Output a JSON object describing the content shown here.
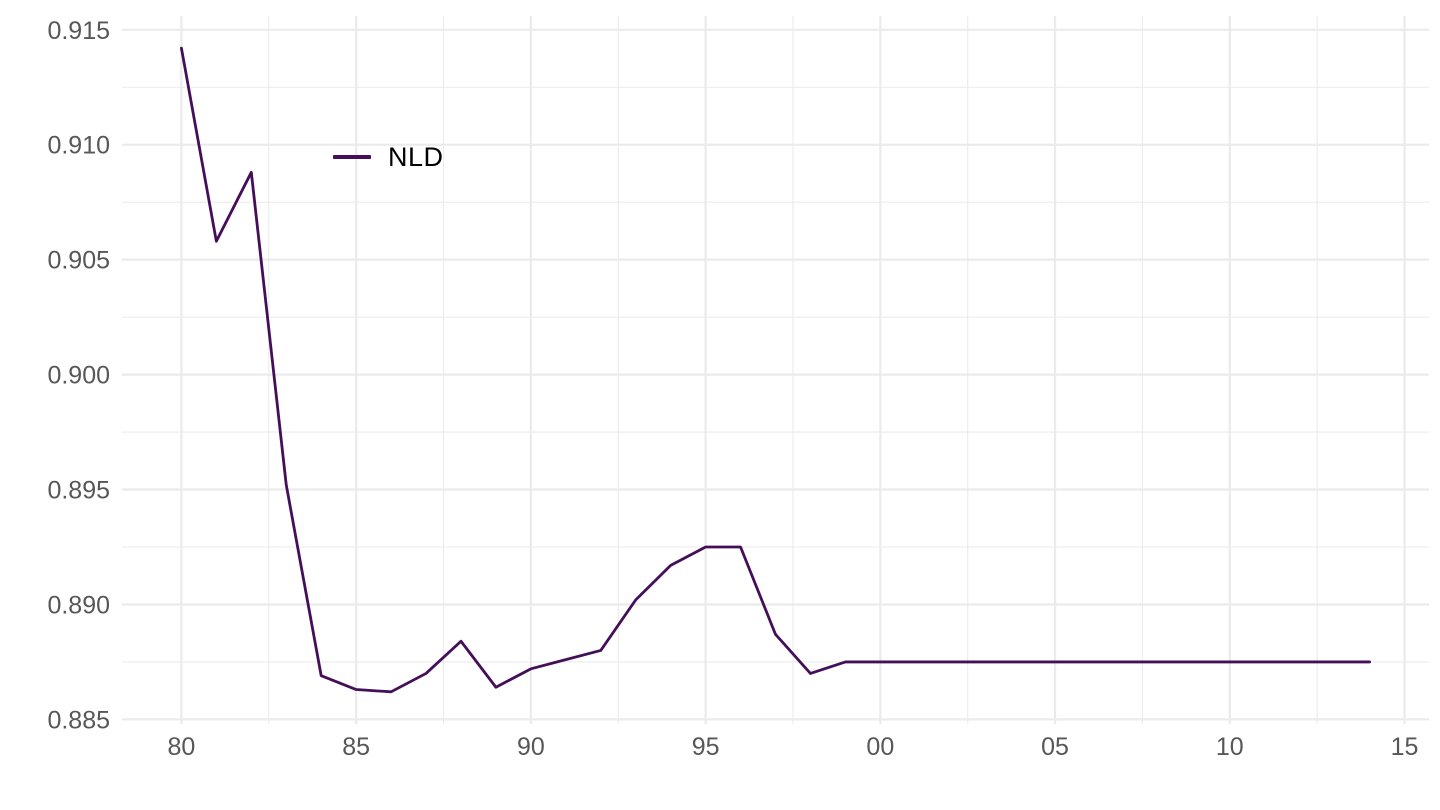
{
  "chart_data": {
    "type": "line",
    "title": "",
    "xlabel": "",
    "ylabel": "",
    "grid": "major+minor",
    "legend_position": "inside-top-left",
    "x": [
      1980,
      1981,
      1982,
      1983,
      1984,
      1985,
      1986,
      1987,
      1988,
      1989,
      1990,
      1991,
      1992,
      1993,
      1994,
      1995,
      1996,
      1997,
      1998,
      1999,
      2000,
      2001,
      2002,
      2003,
      2004,
      2005,
      2006,
      2007,
      2008,
      2009,
      2010,
      2011,
      2012,
      2013,
      2014
    ],
    "series": [
      {
        "name": "NLD",
        "color": "#440f58",
        "values": [
          0.9142,
          0.9058,
          0.9088,
          0.8952,
          0.8869,
          0.8863,
          0.8862,
          0.887,
          0.8884,
          0.8864,
          0.8872,
          0.8876,
          0.888,
          0.8902,
          0.8917,
          0.8925,
          0.8925,
          0.8887,
          0.887,
          0.8875,
          0.8875,
          0.8875,
          0.8875,
          0.8875,
          0.8875,
          0.8875,
          0.8875,
          0.8875,
          0.8875,
          0.8875,
          0.8875,
          0.8875,
          0.8875,
          0.8875,
          0.8875
        ]
      }
    ],
    "x_ticks": [
      {
        "v": 1980,
        "label": "80"
      },
      {
        "v": 1985,
        "label": "85"
      },
      {
        "v": 1990,
        "label": "90"
      },
      {
        "v": 1995,
        "label": "95"
      },
      {
        "v": 2000,
        "label": "00"
      },
      {
        "v": 2005,
        "label": "05"
      },
      {
        "v": 2010,
        "label": "10"
      },
      {
        "v": 2015,
        "label": "15"
      }
    ],
    "x_minor_ticks": [
      1982.5,
      1987.5,
      1992.5,
      1997.5,
      2002.5,
      2007.5,
      2012.5
    ],
    "y_ticks": [
      {
        "v": 0.885,
        "label": "0.885"
      },
      {
        "v": 0.89,
        "label": "0.890"
      },
      {
        "v": 0.895,
        "label": "0.895"
      },
      {
        "v": 0.9,
        "label": "0.900"
      },
      {
        "v": 0.905,
        "label": "0.905"
      },
      {
        "v": 0.91,
        "label": "0.910"
      },
      {
        "v": 0.915,
        "label": "0.915"
      }
    ],
    "y_minor_ticks": [
      0.8875,
      0.8925,
      0.8975,
      0.9025,
      0.9075,
      0.9125
    ],
    "x_domain": [
      1978.3,
      2015.7
    ],
    "y_domain": [
      0.8848,
      0.9156
    ]
  },
  "style": {
    "background": "#ffffff",
    "grid_major_color": "#ebebeb",
    "grid_minor_color": "#ebebeb",
    "grid_major_width": 2.2,
    "grid_minor_width": 1.1,
    "axis_text_color": "#575757",
    "legend_text_color": "#000000",
    "line_width": 2.8
  }
}
